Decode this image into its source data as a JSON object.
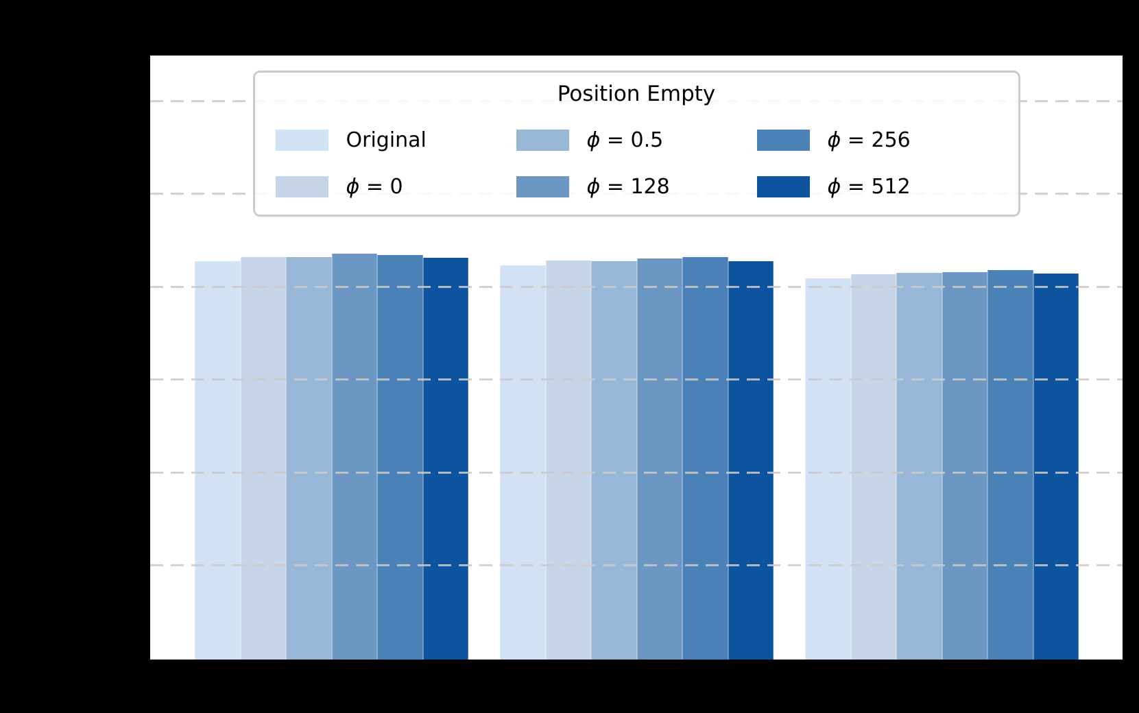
{
  "figure": {
    "background_color": "#000000",
    "plot_background_color": "#ffffff",
    "gridline_color": "#cacaca",
    "note_visible_text_only": "Axis tick labels, axis titles and category labels are not visible (rendered black on black background)"
  },
  "legend": {
    "title": "Position Empty",
    "items": [
      {
        "symbol": "",
        "label": "Original",
        "color": "#d0e2f3"
      },
      {
        "symbol": "ϕ",
        "label": " = 0",
        "color": "#c6d6e8"
      },
      {
        "symbol": "ϕ",
        "label": " = 0.5",
        "color": "#98b7d7"
      },
      {
        "symbol": "ϕ",
        "label": " = 128",
        "color": "#6c97c3"
      },
      {
        "symbol": "ϕ",
        "label": " = 256",
        "color": "#4a81b6"
      },
      {
        "symbol": "ϕ",
        "label": " = 512",
        "color": "#0e539d"
      }
    ]
  },
  "chart_data": {
    "type": "bar",
    "title": "",
    "categories": [
      "",
      "",
      ""
    ],
    "series": [
      {
        "name": "Original",
        "color": "#d0e2f3",
        "values": [
          0.857,
          0.848,
          0.82
        ]
      },
      {
        "name": "ϕ = 0",
        "color": "#c6d6e8",
        "values": [
          0.866,
          0.859,
          0.829
        ]
      },
      {
        "name": "ϕ = 0.5",
        "color": "#98b7d7",
        "values": [
          0.866,
          0.858,
          0.832
        ]
      },
      {
        "name": "ϕ = 128",
        "color": "#6c97c3",
        "values": [
          0.873,
          0.863,
          0.833
        ]
      },
      {
        "name": "ϕ = 256",
        "color": "#4a81b6",
        "values": [
          0.87,
          0.866,
          0.838
        ]
      },
      {
        "name": "ϕ = 512",
        "color": "#0e539d",
        "values": [
          0.864,
          0.858,
          0.831
        ]
      }
    ],
    "ylim": [
      0,
      1.3
    ],
    "gridline_step": 0.2,
    "grid": "horizontal-dashed",
    "legend_position": "upper center",
    "legend_title": "Position Empty",
    "x_tick_labels_visible": false,
    "y_tick_labels_visible": false
  }
}
